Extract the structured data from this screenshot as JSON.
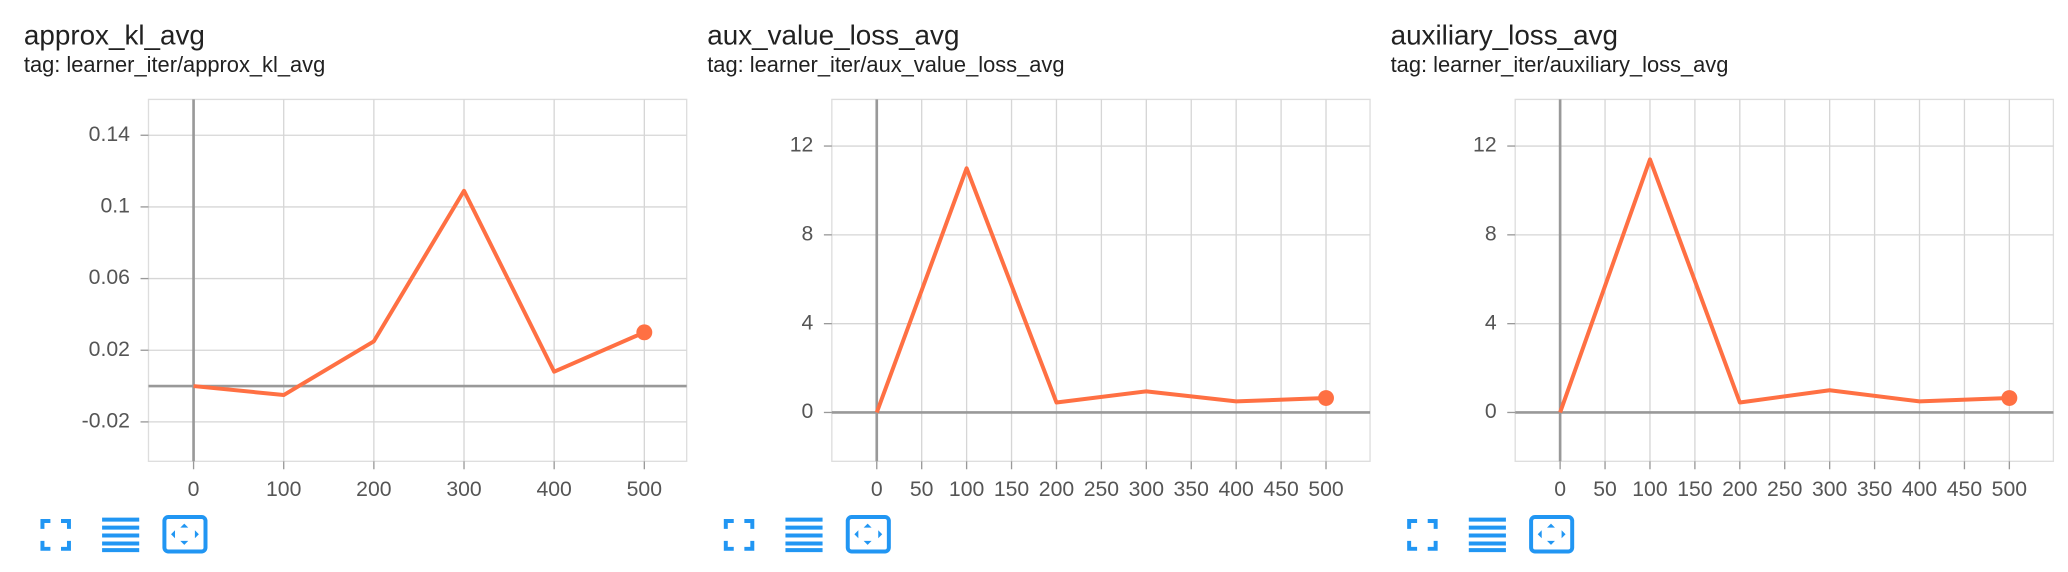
{
  "chart_data": [
    {
      "type": "line",
      "title": "approx_kl_avg",
      "subtitle": "tag: learner_iter/approx_kl_avg",
      "x": [
        0,
        100,
        200,
        300,
        400,
        500
      ],
      "values": [
        0,
        -0.005,
        0.025,
        0.109,
        0.008,
        0.03
      ],
      "color": "#ff7043",
      "xlim": [
        -50,
        547
      ],
      "xticks": [
        0,
        100,
        200,
        300,
        400,
        500
      ],
      "ylim": [
        -0.042,
        0.16
      ],
      "yticks": [
        -0.02,
        0.02,
        0.06,
        0.1,
        0.14
      ],
      "grid": true
    },
    {
      "type": "line",
      "title": "aux_value_loss_avg",
      "subtitle": "tag: learner_iter/aux_value_loss_avg",
      "x": [
        0,
        100,
        200,
        300,
        400,
        500
      ],
      "values": [
        0,
        11,
        0.45,
        0.95,
        0.5,
        0.65
      ],
      "color": "#ff7043",
      "xlim": [
        -50,
        549
      ],
      "xticks": [
        0,
        50,
        100,
        150,
        200,
        250,
        300,
        350,
        400,
        450,
        500
      ],
      "ylim": [
        -2.2,
        14.1
      ],
      "yticks": [
        0,
        4,
        8,
        12
      ],
      "grid": true
    },
    {
      "type": "line",
      "title": "auxiliary_loss_avg",
      "subtitle": "tag: learner_iter/auxiliary_loss_avg",
      "x": [
        0,
        100,
        200,
        300,
        400,
        500
      ],
      "values": [
        0,
        11.4,
        0.45,
        1.0,
        0.5,
        0.65
      ],
      "color": "#ff7043",
      "xlim": [
        -50,
        549
      ],
      "xticks": [
        0,
        50,
        100,
        150,
        200,
        250,
        300,
        350,
        400,
        450,
        500
      ],
      "ylim": [
        -2.2,
        14.1
      ],
      "yticks": [
        0,
        4,
        8,
        12
      ],
      "grid": true
    }
  ]
}
